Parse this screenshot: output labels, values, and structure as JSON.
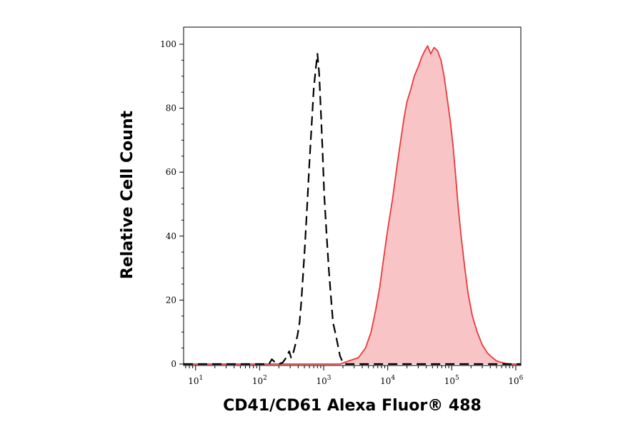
{
  "chart_data": {
    "type": "area",
    "xlabel": "CD41/CD61 Alexa Fluor® 488",
    "ylabel": "Relative Cell Count",
    "x_scale": "log",
    "xlim": [
      6.5,
      1200000
    ],
    "ylim": [
      0,
      100
    ],
    "x_ticks": [
      {
        "value": 10,
        "base": "10",
        "exp": "1"
      },
      {
        "value": 100,
        "base": "10",
        "exp": "2"
      },
      {
        "value": 1000,
        "base": "10",
        "exp": "3"
      },
      {
        "value": 10000,
        "base": "10",
        "exp": "4"
      },
      {
        "value": 100000,
        "base": "10",
        "exp": "5"
      },
      {
        "value": 1000000,
        "base": "10",
        "exp": "6"
      }
    ],
    "y_ticks": [
      0,
      20,
      40,
      60,
      80,
      100
    ],
    "grid": false,
    "legend": "none",
    "series": [
      {
        "style": "dashed",
        "color": "#000000",
        "fill": "none",
        "x": [
          6.5,
          120,
          140,
          155,
          175,
          200,
          230,
          260,
          290,
          310,
          330,
          360,
          390,
          420,
          450,
          480,
          510,
          550,
          600,
          660,
          700,
          750,
          800,
          850,
          900,
          960,
          1020,
          1100,
          1200,
          1300,
          1400,
          1550,
          1700,
          1800,
          1950,
          2100,
          2500,
          1200000
        ],
        "y": [
          0,
          0,
          0,
          1.5,
          0.5,
          0,
          0.5,
          2,
          4,
          2,
          3,
          6,
          9,
          13,
          20,
          29,
          37,
          49,
          63,
          77,
          86,
          92,
          97,
          91,
          80,
          67,
          53,
          42,
          30,
          21,
          13,
          9,
          5,
          2.5,
          1,
          0,
          0,
          0
        ]
      },
      {
        "style": "solid",
        "color": "#e8393c",
        "fill": "#f9c4c6",
        "x": [
          6.5,
          1800,
          2500,
          3500,
          4500,
          5500,
          6500,
          7500,
          8500,
          10000,
          12000,
          14000,
          16000,
          18000,
          20000,
          23000,
          26000,
          30000,
          34000,
          38000,
          42000,
          47000,
          53000,
          60000,
          68000,
          76000,
          85000,
          95000,
          105000,
          115000,
          125000,
          140000,
          160000,
          180000,
          210000,
          250000,
          300000,
          360000,
          430000,
          500000,
          600000,
          700000,
          800000,
          1200000
        ],
        "y": [
          0,
          0,
          1,
          2,
          5,
          10,
          17,
          24,
          32,
          42,
          52,
          62,
          70,
          77,
          82,
          86,
          90,
          93,
          96,
          98,
          99.5,
          97,
          99,
          98,
          95,
          90,
          83,
          76,
          68,
          59,
          50,
          40,
          30,
          22,
          15,
          10,
          6,
          3.5,
          2,
          1,
          0.5,
          0.2,
          0,
          0
        ]
      }
    ]
  }
}
